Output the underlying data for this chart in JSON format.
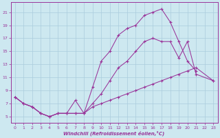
{
  "background_color": "#cde8f0",
  "grid_color": "#aaccdd",
  "line_color": "#993399",
  "xlabel": "Windchill (Refroidissement éolien,°C)",
  "xlim": [
    -0.5,
    23.5
  ],
  "ylim": [
    4.0,
    22.5
  ],
  "xticks": [
    0,
    1,
    2,
    3,
    4,
    5,
    6,
    7,
    8,
    9,
    10,
    11,
    12,
    13,
    14,
    15,
    16,
    17,
    18,
    19,
    20,
    21,
    22,
    23
  ],
  "yticks": [
    5,
    7,
    9,
    11,
    13,
    15,
    17,
    19,
    21
  ],
  "line1_x": [
    0,
    1,
    2,
    3,
    4,
    5,
    6,
    7,
    8,
    9,
    10,
    11,
    12,
    13,
    14,
    15,
    16,
    17,
    18,
    19,
    20,
    21
  ],
  "line1_y": [
    8.0,
    7.0,
    6.5,
    5.5,
    5.0,
    5.5,
    5.5,
    7.5,
    5.5,
    9.5,
    13.5,
    15.0,
    17.5,
    18.5,
    19.0,
    20.5,
    21.0,
    21.5,
    19.5,
    16.5,
    13.5,
    12.0
  ],
  "line2_x": [
    0,
    1,
    2,
    3,
    4,
    5,
    6,
    7,
    8,
    9,
    10,
    11,
    12,
    13,
    14,
    15,
    16,
    17,
    18,
    19,
    20,
    21,
    23
  ],
  "line2_y": [
    8.0,
    7.0,
    6.5,
    5.5,
    5.0,
    5.5,
    5.5,
    5.5,
    5.5,
    7.0,
    8.5,
    10.5,
    12.5,
    13.5,
    15.0,
    16.5,
    17.0,
    16.5,
    16.5,
    14.0,
    16.5,
    11.5,
    10.5
  ],
  "line3_x": [
    0,
    1,
    2,
    3,
    4,
    5,
    6,
    7,
    8,
    9,
    10,
    11,
    12,
    13,
    14,
    15,
    16,
    17,
    18,
    19,
    20,
    21,
    23
  ],
  "line3_y": [
    8.0,
    7.0,
    6.5,
    5.5,
    5.0,
    5.5,
    5.5,
    5.5,
    5.5,
    6.5,
    7.0,
    7.5,
    8.0,
    8.5,
    9.0,
    9.5,
    10.0,
    10.5,
    11.0,
    11.5,
    12.0,
    12.5,
    10.5
  ]
}
